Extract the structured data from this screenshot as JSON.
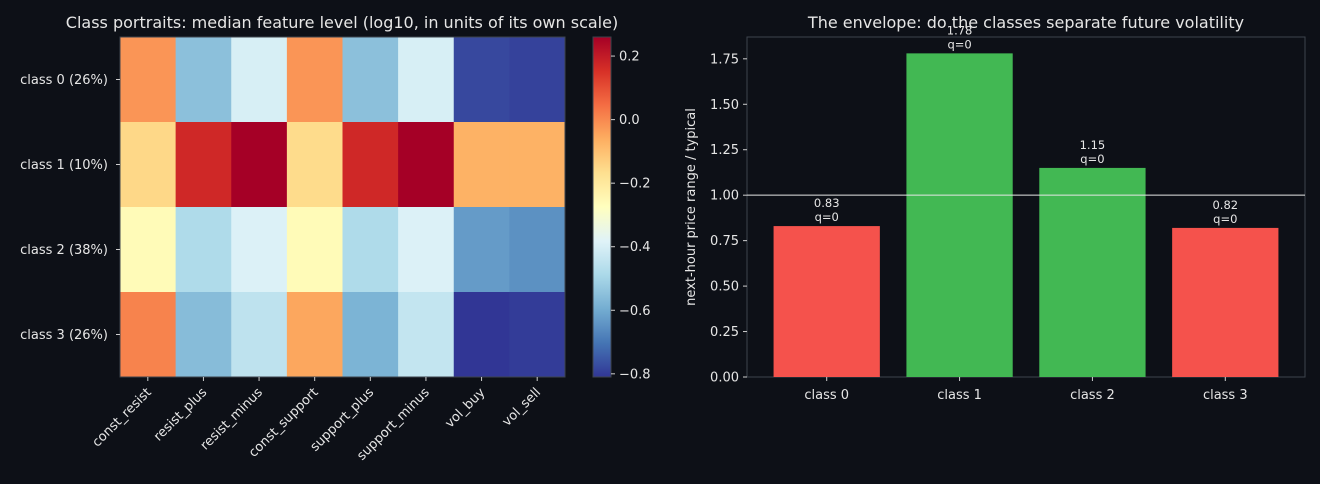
{
  "chart_data": [
    {
      "type": "heatmap",
      "title": "Class portraits: median feature level (log10, in units of its own scale)",
      "rows": [
        "class 0 (26%)",
        "class 1 (10%)",
        "class 2 (38%)",
        "class 3 (26%)"
      ],
      "columns": [
        "const_resist",
        "resist_plus",
        "resist_minus",
        "const_support",
        "support_plus",
        "support_minus",
        "vol_buy",
        "vol_sell"
      ],
      "values": [
        [
          -0.02,
          -0.55,
          -0.4,
          -0.02,
          -0.55,
          -0.4,
          -0.78,
          -0.79
        ],
        [
          -0.15,
          0.17,
          0.26,
          -0.16,
          0.17,
          0.26,
          -0.07,
          -0.07
        ],
        [
          -0.26,
          -0.48,
          -0.39,
          -0.26,
          -0.48,
          -0.39,
          -0.63,
          -0.65
        ],
        [
          0.01,
          -0.56,
          -0.45,
          -0.05,
          -0.58,
          -0.44,
          -0.82,
          -0.8
        ]
      ],
      "colorbar": {
        "min": -0.81,
        "max": 0.26,
        "ticks": [
          0.2,
          0.0,
          -0.2,
          -0.4,
          -0.6,
          -0.8
        ],
        "tick_labels": [
          "0.2",
          "0.0",
          "−0.2",
          "−0.4",
          "−0.6",
          "−0.8"
        ],
        "colormap": "RdYlBu_r"
      }
    },
    {
      "type": "bar",
      "title": "The envelope: do the classes separate future volatility",
      "categories": [
        "class 0",
        "class 1",
        "class 2",
        "class 3"
      ],
      "values": [
        0.83,
        1.78,
        1.15,
        0.82
      ],
      "value_labels": [
        "0.83",
        "1.78",
        "1.15",
        "0.82"
      ],
      "q_labels": [
        "q=0",
        "q=0",
        "q=0",
        "q=0"
      ],
      "ylabel": "next-hour price range / typical",
      "ylim": [
        0,
        1.87
      ],
      "yticks": [
        0,
        0.25,
        0.5,
        0.75,
        1.0,
        1.25,
        1.5,
        1.75
      ],
      "ytick_labels": [
        "0.00",
        "0.25",
        "0.50",
        "0.75",
        "1.00",
        "1.25",
        "1.50",
        "1.75"
      ],
      "reference_line": 1.0,
      "colors": [
        "#f5524c",
        "#42b853",
        "#42b853",
        "#f5524c"
      ],
      "grid": false
    }
  ]
}
